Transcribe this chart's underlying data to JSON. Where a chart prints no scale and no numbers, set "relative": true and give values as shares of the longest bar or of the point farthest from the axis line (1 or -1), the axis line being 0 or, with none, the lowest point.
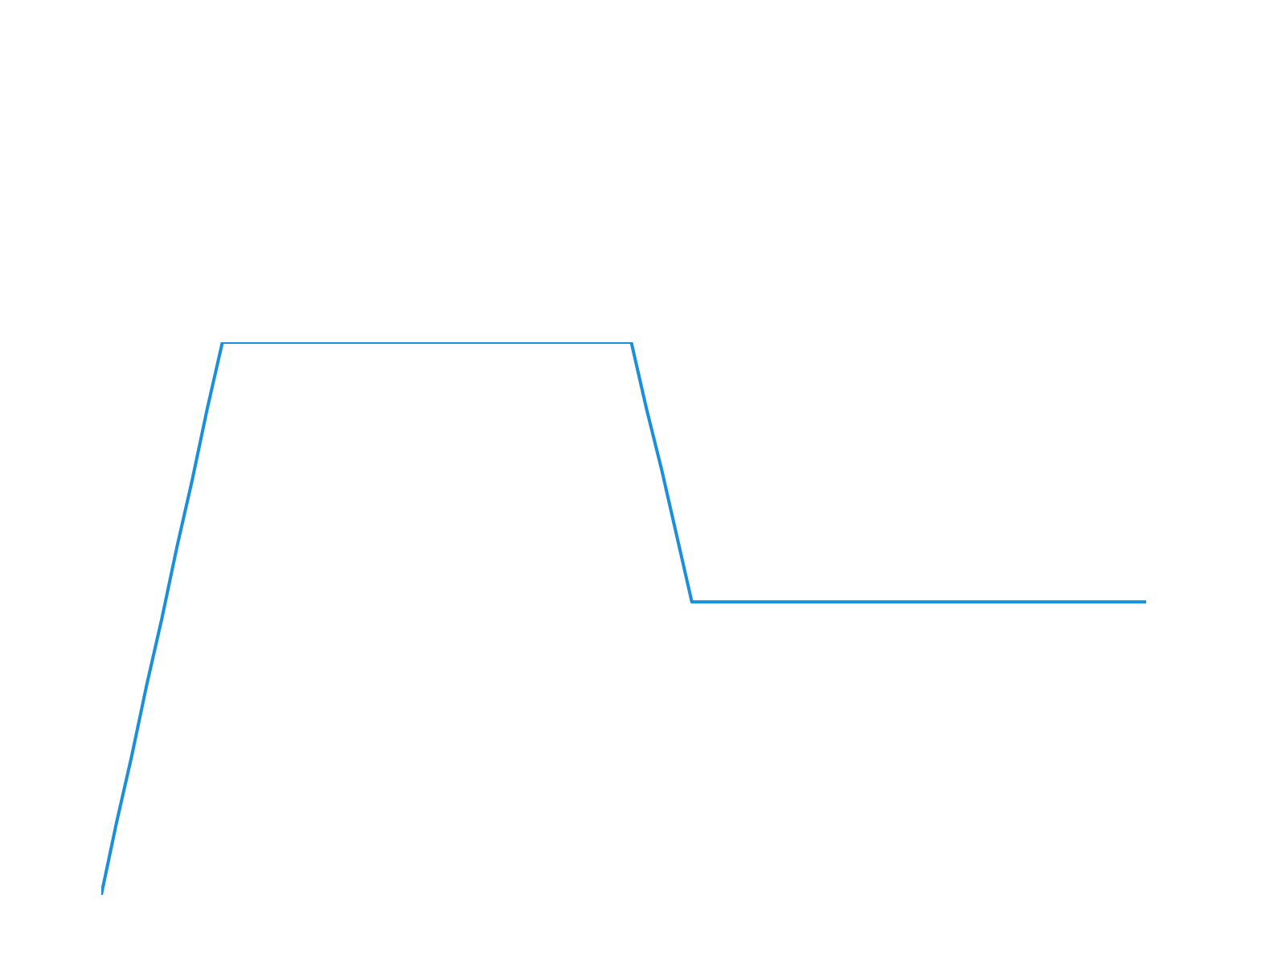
{
  "chart_data": {
    "type": "line",
    "relative": true,
    "color": "#1a8fdc",
    "categories": [
      null,
      null,
      null,
      null,
      null,
      null,
      null,
      null,
      null,
      null,
      null,
      null,
      null,
      null,
      null,
      null,
      null,
      null,
      null,
      null,
      null,
      null,
      null,
      null,
      null,
      null,
      null,
      null,
      null,
      null,
      null,
      null,
      null,
      null,
      null,
      null,
      null,
      null,
      null,
      null,
      null,
      null,
      null,
      null,
      null,
      null,
      null,
      null,
      null,
      null,
      null,
      null,
      null,
      null,
      null,
      null,
      null,
      null,
      null,
      null,
      null,
      null,
      null,
      null,
      null,
      null,
      null,
      null,
      null,
      null
    ],
    "values": [
      0,
      0.13,
      0.25,
      0.38,
      0.5,
      0.63,
      0.75,
      0.88,
      1,
      1,
      1,
      1,
      1,
      1,
      1,
      1,
      1,
      1,
      1,
      1,
      1,
      1,
      1,
      1,
      1,
      1,
      1,
      1,
      1,
      1,
      1,
      1,
      1,
      1,
      1,
      1,
      0.88,
      0.77,
      0.65,
      0.53,
      0.53,
      0.53,
      0.53,
      0.53,
      0.53,
      0.53,
      0.53,
      0.53,
      0.53,
      0.53,
      0.53,
      0.53,
      0.53,
      0.53,
      0.53,
      0.53,
      0.53,
      0.53,
      0.53,
      0.53,
      0.53,
      0.53,
      0.53,
      0.53,
      0.53,
      0.53,
      0.53,
      0.53,
      0.53,
      0.53
    ]
  }
}
